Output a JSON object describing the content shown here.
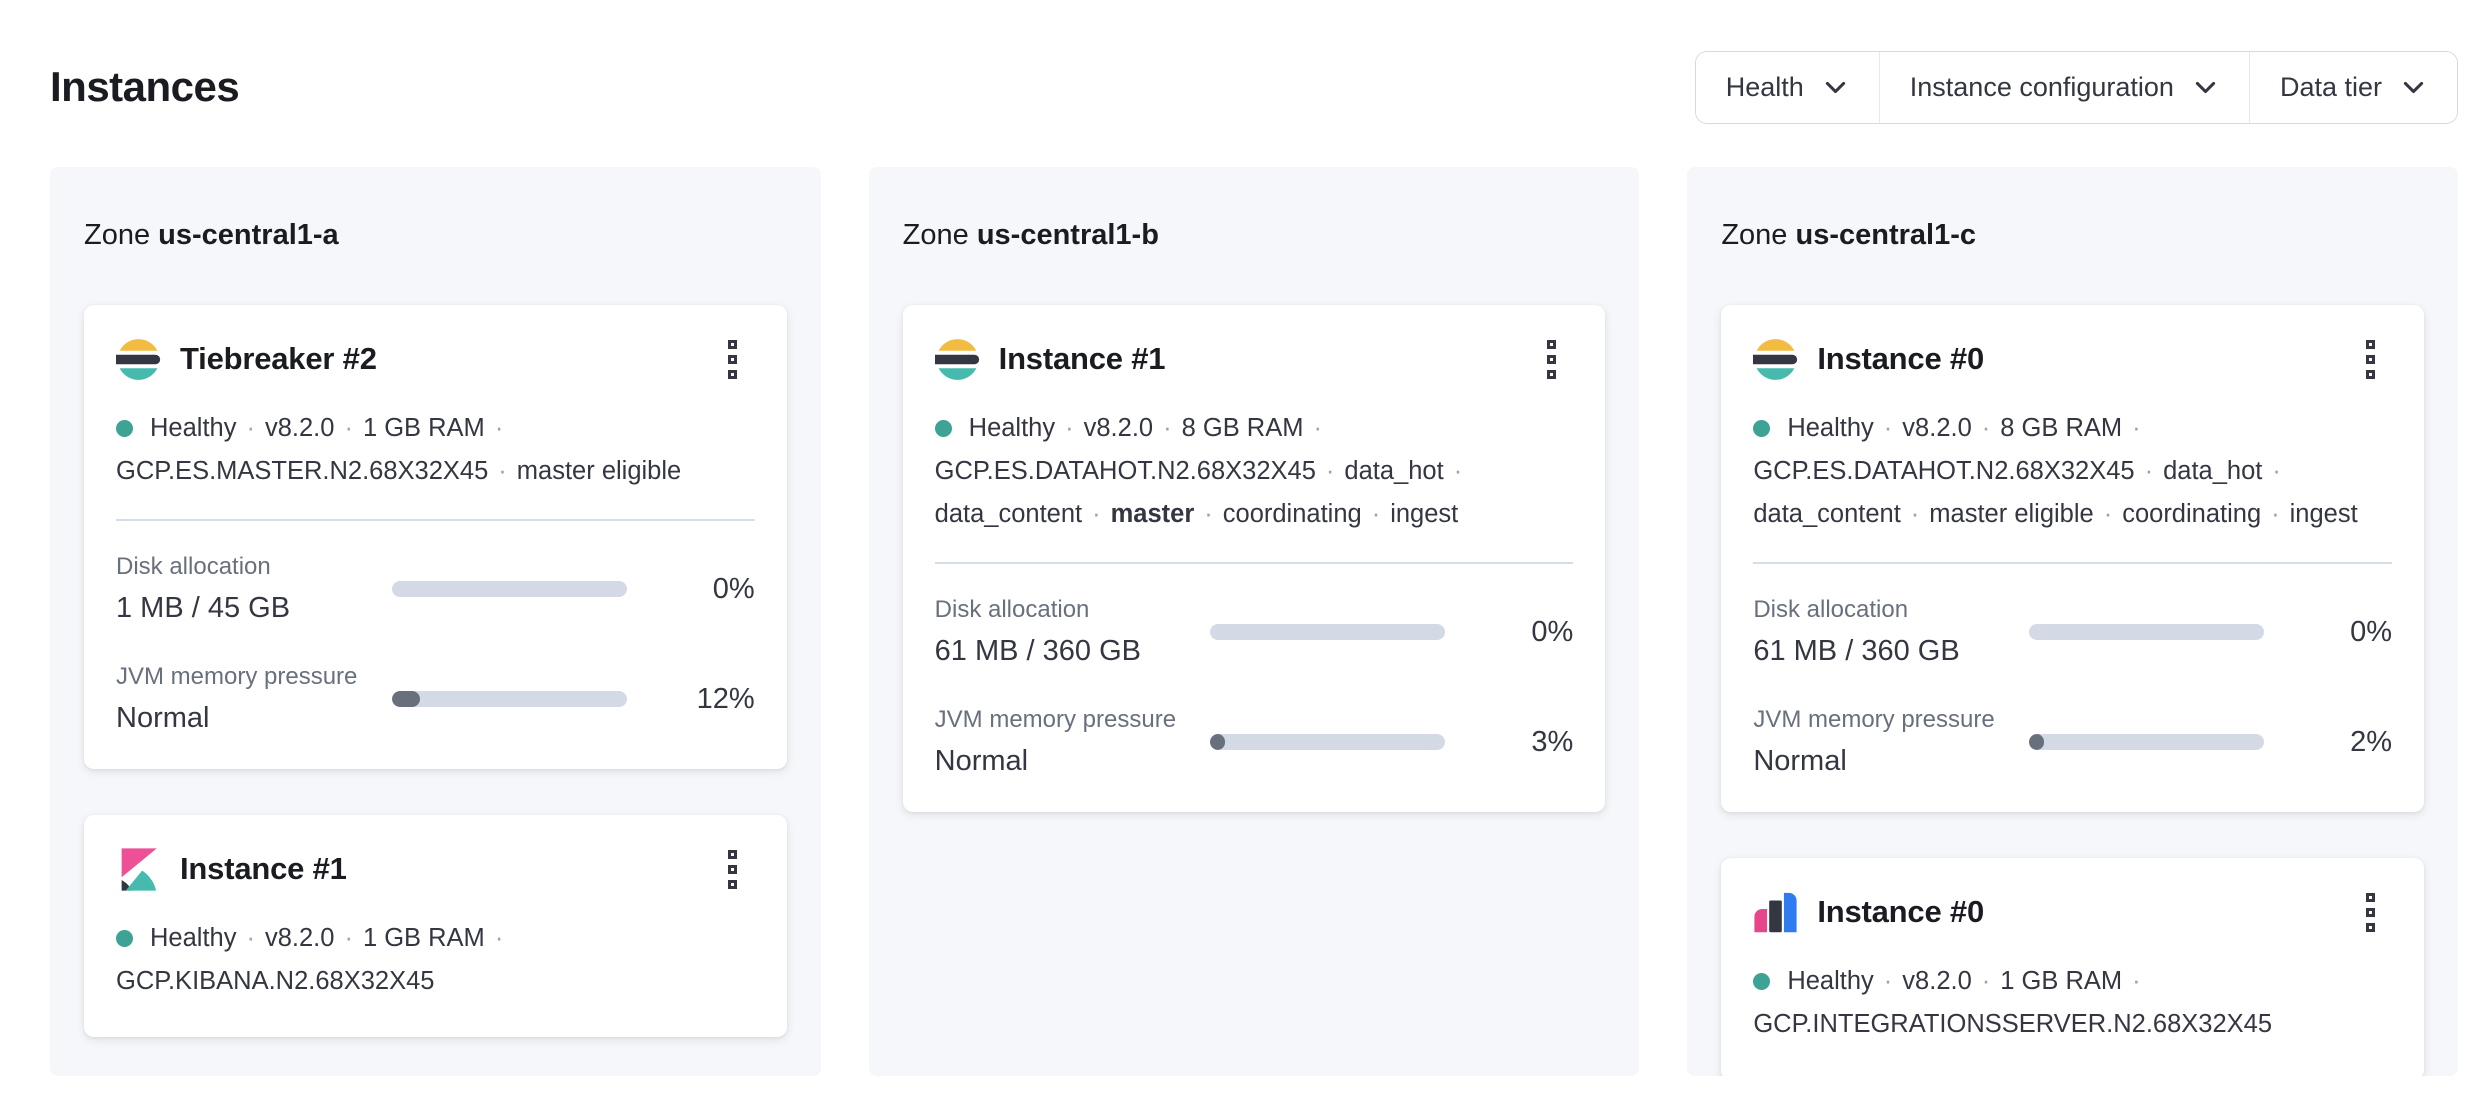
{
  "page": {
    "title": "Instances"
  },
  "filters": [
    {
      "label": "Health"
    },
    {
      "label": "Instance configuration"
    },
    {
      "label": "Data tier"
    }
  ],
  "zones": [
    {
      "prefix": "Zone",
      "name": "us-central1-a",
      "cards": [
        {
          "icon": "elasticsearch-logo",
          "title": "Tiebreaker #2",
          "status_lines": [
            {
              "dot": true,
              "trailing_sep": true,
              "segments": [
                {
                  "text": "Healthy"
                },
                {
                  "text": "v8.2.0"
                },
                {
                  "text": "1 GB RAM"
                }
              ]
            },
            {
              "trailing_sep": false,
              "segments": [
                {
                  "text": "GCP.ES.MASTER.N2.68X32X45"
                },
                {
                  "text": "master eligible"
                }
              ]
            }
          ],
          "metrics": [
            {
              "label": "Disk allocation",
              "value": "1 MB / 45 GB",
              "percent": 0,
              "percent_label": "0%"
            },
            {
              "label": "JVM memory pressure",
              "value": "Normal",
              "percent": 12,
              "percent_label": "12%"
            }
          ]
        },
        {
          "icon": "kibana-logo",
          "title": "Instance #1",
          "status_lines": [
            {
              "dot": true,
              "trailing_sep": true,
              "segments": [
                {
                  "text": "Healthy"
                },
                {
                  "text": "v8.2.0"
                },
                {
                  "text": "1 GB RAM"
                }
              ]
            },
            {
              "trailing_sep": false,
              "segments": [
                {
                  "text": "GCP.KIBANA.N2.68X32X45"
                }
              ]
            }
          ],
          "metrics": []
        }
      ]
    },
    {
      "prefix": "Zone",
      "name": "us-central1-b",
      "cards": [
        {
          "icon": "elasticsearch-logo",
          "title": "Instance #1",
          "status_lines": [
            {
              "dot": true,
              "trailing_sep": true,
              "segments": [
                {
                  "text": "Healthy"
                },
                {
                  "text": "v8.2.0"
                },
                {
                  "text": "8 GB RAM"
                }
              ]
            },
            {
              "trailing_sep": true,
              "segments": [
                {
                  "text": "GCP.ES.DATAHOT.N2.68X32X45"
                },
                {
                  "text": "data_hot"
                }
              ]
            },
            {
              "trailing_sep": false,
              "segments": [
                {
                  "text": "data_content"
                },
                {
                  "text": "master",
                  "bold": true
                },
                {
                  "text": "coordinating"
                },
                {
                  "text": "ingest"
                }
              ]
            }
          ],
          "metrics": [
            {
              "label": "Disk allocation",
              "value": "61 MB / 360 GB",
              "percent": 0,
              "percent_label": "0%"
            },
            {
              "label": "JVM memory pressure",
              "value": "Normal",
              "percent": 3,
              "percent_label": "3%"
            }
          ]
        }
      ]
    },
    {
      "prefix": "Zone",
      "name": "us-central1-c",
      "cards": [
        {
          "icon": "elasticsearch-logo",
          "title": "Instance #0",
          "status_lines": [
            {
              "dot": true,
              "trailing_sep": true,
              "segments": [
                {
                  "text": "Healthy"
                },
                {
                  "text": "v8.2.0"
                },
                {
                  "text": "8 GB RAM"
                }
              ]
            },
            {
              "trailing_sep": true,
              "segments": [
                {
                  "text": "GCP.ES.DATAHOT.N2.68X32X45"
                },
                {
                  "text": "data_hot"
                }
              ]
            },
            {
              "trailing_sep": false,
              "segments": [
                {
                  "text": "data_content"
                },
                {
                  "text": "master eligible"
                },
                {
                  "text": "coordinating"
                },
                {
                  "text": "ingest"
                }
              ]
            }
          ],
          "metrics": [
            {
              "label": "Disk allocation",
              "value": "61 MB / 360 GB",
              "percent": 0,
              "percent_label": "0%"
            },
            {
              "label": "JVM memory pressure",
              "value": "Normal",
              "percent": 2,
              "percent_label": "2%"
            }
          ]
        },
        {
          "icon": "integrations-server-logo",
          "title": "Instance #0",
          "status_lines": [
            {
              "dot": true,
              "trailing_sep": true,
              "segments": [
                {
                  "text": "Healthy"
                },
                {
                  "text": "v8.2.0"
                },
                {
                  "text": "1 GB RAM"
                }
              ]
            },
            {
              "trailing_sep": false,
              "segments": [
                {
                  "text": "GCP.INTEGRATIONSSERVER.N2.68X32X45"
                }
              ]
            }
          ],
          "metrics": []
        }
      ]
    }
  ],
  "colors": {
    "healthy_dot": "#3ea294",
    "panel_bg": "#f5f7fa",
    "progress_track": "#d3dae6",
    "progress_fill": "#69707d",
    "separator_dot": "#98a2b3",
    "es_yellow": "#f2bc42",
    "brand_dark": "#343741",
    "brand_teal": "#45baad",
    "kibana_pink": "#ee5096",
    "integrations_pink": "#e8468a",
    "integrations_blue": "#2e7cef"
  }
}
